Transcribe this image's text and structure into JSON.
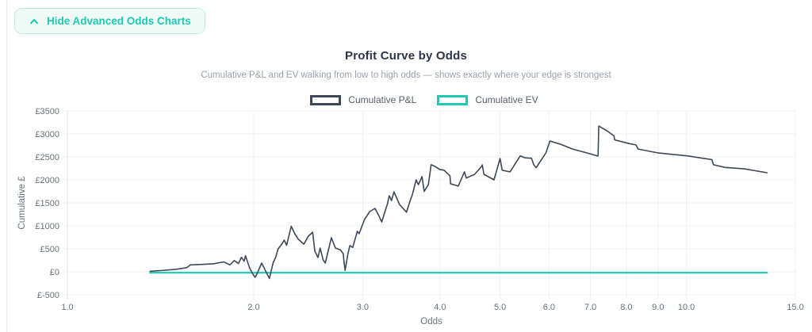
{
  "controls": {
    "toggle_charts_button": {
      "label": "Hide Advanced Odds Charts",
      "icon": "chevron-up"
    }
  },
  "chart_header": {
    "title": "Profit Curve by Odds",
    "subtitle": "Cumulative P&L and EV walking from low to high odds — shows exactly where your edge is strongest"
  },
  "legend": {
    "items": [
      {
        "label": "Cumulative P&L",
        "color": "#3c4758"
      },
      {
        "label": "Cumulative EV",
        "color": "#1ec9b4"
      }
    ]
  },
  "theme": {
    "accent": "#1ec9b4",
    "accent_bg": "#f0fbf8",
    "accent_border": "#bfecdf",
    "dark_line": "#3c4758",
    "title_color": "#2b3547",
    "muted_text": "#98a2ae",
    "axis_text": "#68727e",
    "grid_color": "#edf0f3"
  },
  "chart_data": {
    "type": "line",
    "title": "Profit Curve by Odds",
    "xlabel": "Odds",
    "ylabel": "Cumulative £",
    "x_scale": "log",
    "grid": true,
    "legend_position": "top",
    "xlim": [
      1.0,
      15.0
    ],
    "ylim": [
      -500,
      3500
    ],
    "x_ticks": [
      1.0,
      2.0,
      3.0,
      4.0,
      5.0,
      6.0,
      7.0,
      8.0,
      9.0,
      10.0,
      15.0
    ],
    "x_tick_labels": [
      "1.0",
      "2.0",
      "3.0",
      "4.0",
      "5.0",
      "6.0",
      "7.0",
      "8.0",
      "9.0",
      "10.0",
      "15.0"
    ],
    "y_ticks": [
      -500,
      0,
      500,
      1000,
      1500,
      2000,
      2500,
      3000,
      3500
    ],
    "y_tick_labels": [
      "£-500",
      "£0",
      "£500",
      "£1000",
      "£1500",
      "£2000",
      "£2500",
      "£3000",
      "£3500"
    ],
    "series": [
      {
        "name": "Cumulative EV",
        "color": "#1ec9b4",
        "width": 2.2,
        "points": [
          [
            1.36,
            -20
          ],
          [
            13.5,
            -20
          ]
        ]
      },
      {
        "name": "Cumulative P&L",
        "color": "#3c4758",
        "width": 1.6,
        "points": [
          [
            1.36,
            10
          ],
          [
            1.44,
            35
          ],
          [
            1.5,
            55
          ],
          [
            1.56,
            90
          ],
          [
            1.58,
            150
          ],
          [
            1.65,
            160
          ],
          [
            1.72,
            175
          ],
          [
            1.79,
            215
          ],
          [
            1.83,
            150
          ],
          [
            1.86,
            245
          ],
          [
            1.89,
            180
          ],
          [
            1.91,
            315
          ],
          [
            1.93,
            230
          ],
          [
            1.94,
            350
          ],
          [
            1.97,
            85
          ],
          [
            1.99,
            -35
          ],
          [
            2.01,
            -120
          ],
          [
            2.03,
            -10
          ],
          [
            2.06,
            190
          ],
          [
            2.09,
            20
          ],
          [
            2.12,
            -145
          ],
          [
            2.15,
            200
          ],
          [
            2.17,
            310
          ],
          [
            2.19,
            500
          ],
          [
            2.22,
            600
          ],
          [
            2.24,
            690
          ],
          [
            2.26,
            575
          ],
          [
            2.3,
            990
          ],
          [
            2.33,
            830
          ],
          [
            2.36,
            710
          ],
          [
            2.41,
            600
          ],
          [
            2.45,
            775
          ],
          [
            2.49,
            860
          ],
          [
            2.51,
            450
          ],
          [
            2.54,
            310
          ],
          [
            2.56,
            515
          ],
          [
            2.59,
            255
          ],
          [
            2.61,
            190
          ],
          [
            2.67,
            740
          ],
          [
            2.71,
            515
          ],
          [
            2.76,
            480
          ],
          [
            2.79,
            395
          ],
          [
            2.8,
            190
          ],
          [
            2.81,
            30
          ],
          [
            2.84,
            395
          ],
          [
            2.86,
            570
          ],
          [
            2.89,
            530
          ],
          [
            2.94,
            880
          ],
          [
            2.96,
            830
          ],
          [
            3.02,
            1140
          ],
          [
            3.08,
            1310
          ],
          [
            3.14,
            1380
          ],
          [
            3.19,
            1205
          ],
          [
            3.22,
            1085
          ],
          [
            3.29,
            1485
          ],
          [
            3.31,
            1655
          ],
          [
            3.34,
            1550
          ],
          [
            3.37,
            1740
          ],
          [
            3.44,
            1465
          ],
          [
            3.53,
            1295
          ],
          [
            3.58,
            1550
          ],
          [
            3.61,
            1690
          ],
          [
            3.66,
            2000
          ],
          [
            3.69,
            1895
          ],
          [
            3.74,
            2070
          ],
          [
            3.77,
            1750
          ],
          [
            3.83,
            1895
          ],
          [
            3.87,
            2330
          ],
          [
            3.93,
            2290
          ],
          [
            3.99,
            2230
          ],
          [
            4.06,
            2210
          ],
          [
            4.15,
            2090
          ],
          [
            4.16,
            1915
          ],
          [
            4.28,
            1865
          ],
          [
            4.38,
            2175
          ],
          [
            4.41,
            2040
          ],
          [
            4.55,
            2120
          ],
          [
            4.67,
            2295
          ],
          [
            4.68,
            2325
          ],
          [
            4.71,
            2120
          ],
          [
            4.89,
            2000
          ],
          [
            5.0,
            2465
          ],
          [
            5.04,
            2210
          ],
          [
            5.19,
            2175
          ],
          [
            5.39,
            2520
          ],
          [
            5.49,
            2480
          ],
          [
            5.62,
            2470
          ],
          [
            5.67,
            2325
          ],
          [
            5.72,
            2265
          ],
          [
            5.93,
            2585
          ],
          [
            6.02,
            2845
          ],
          [
            6.25,
            2780
          ],
          [
            6.55,
            2670
          ],
          [
            6.92,
            2585
          ],
          [
            7.17,
            2525
          ],
          [
            7.2,
            2520
          ],
          [
            7.22,
            3170
          ],
          [
            7.46,
            3060
          ],
          [
            7.64,
            2955
          ],
          [
            7.66,
            2870
          ],
          [
            8.08,
            2790
          ],
          [
            8.29,
            2760
          ],
          [
            8.36,
            2670
          ],
          [
            9.02,
            2585
          ],
          [
            10.06,
            2520
          ],
          [
            11.0,
            2440
          ],
          [
            11.06,
            2330
          ],
          [
            11.55,
            2270
          ],
          [
            12.4,
            2240
          ],
          [
            13.5,
            2155
          ]
        ]
      }
    ]
  }
}
